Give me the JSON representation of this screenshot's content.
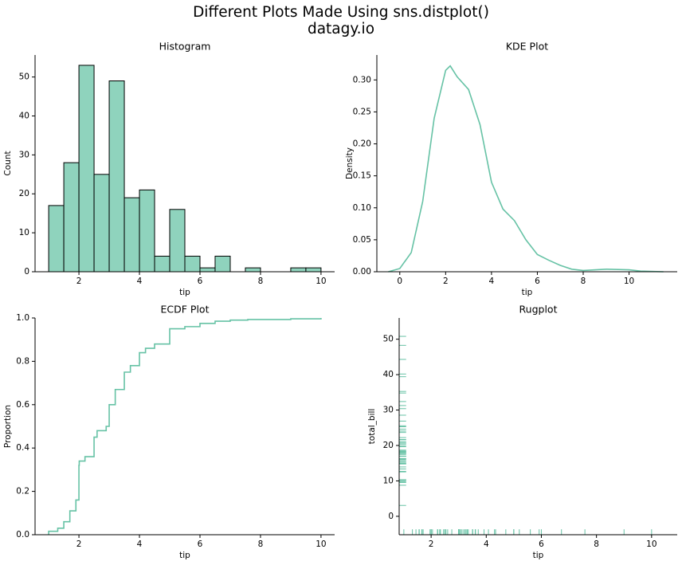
{
  "title": "Different Plots Made Using sns.distplot()",
  "subtitle": "datagy.io",
  "chart_data": [
    {
      "type": "histogram",
      "title": "Histogram",
      "xlabel": "tip",
      "ylabel": "Count",
      "color": "#8fd3bd",
      "edgecolor": "#000000",
      "bins": [
        1.0,
        1.5,
        2.0,
        2.5,
        3.0,
        3.5,
        4.0,
        4.5,
        5.0,
        5.5,
        6.0,
        6.5,
        7.0,
        7.5,
        8.0,
        8.5,
        9.0,
        9.5,
        10.0
      ],
      "values": [
        17,
        28,
        53,
        25,
        49,
        19,
        21,
        4,
        16,
        4,
        1,
        4,
        0,
        1,
        0,
        0,
        1,
        1
      ],
      "xlim": [
        0.55,
        10.45
      ],
      "xticks": [
        2,
        4,
        6,
        8,
        10
      ],
      "ylim": [
        0,
        55.65
      ],
      "yticks": [
        0,
        10,
        20,
        30,
        40,
        50
      ]
    },
    {
      "type": "line",
      "title": "KDE Plot",
      "xlabel": "tip",
      "ylabel": "Density",
      "color": "#66c2a5",
      "x": [
        -0.5,
        0,
        0.5,
        1,
        1.5,
        2,
        2.2,
        2.5,
        3,
        3.5,
        4,
        4.5,
        5,
        5.5,
        6,
        6.5,
        7,
        7.5,
        8,
        9,
        10,
        10.5,
        11.5
      ],
      "values": [
        0,
        0.005,
        0.03,
        0.11,
        0.24,
        0.315,
        0.322,
        0.305,
        0.285,
        0.23,
        0.14,
        0.098,
        0.08,
        0.05,
        0.027,
        0.018,
        0.01,
        0.004,
        0.002,
        0.004,
        0.003,
        0.001,
        0
      ],
      "xlim": [
        -1.0,
        12.1
      ],
      "xticks": [
        0,
        2,
        4,
        6,
        8,
        10
      ],
      "ylim": [
        0,
        0.339
      ],
      "yticks": [
        {
          "value": 0,
          "label": "0.00"
        },
        {
          "value": 0.05,
          "label": "0.05"
        },
        {
          "value": 0.1,
          "label": "0.10"
        },
        {
          "value": 0.15,
          "label": "0.15"
        },
        {
          "value": 0.2,
          "label": "0.20"
        },
        {
          "value": 0.25,
          "label": "0.25"
        },
        {
          "value": 0.3,
          "label": "0.30"
        }
      ]
    },
    {
      "type": "ecdf",
      "title": "ECDF Plot",
      "xlabel": "tip",
      "ylabel": "Proportion",
      "color": "#66c2a5",
      "x": [
        1.0,
        1.3,
        1.5,
        1.7,
        1.9,
        2.0,
        2.01,
        2.2,
        2.5,
        2.6,
        2.9,
        3.0,
        3.2,
        3.5,
        3.7,
        4.0,
        4.2,
        4.5,
        5.0,
        5.5,
        6.0,
        6.5,
        7.0,
        7.58,
        9.0,
        10.0
      ],
      "values": [
        0.016,
        0.03,
        0.06,
        0.11,
        0.16,
        0.32,
        0.34,
        0.36,
        0.45,
        0.48,
        0.5,
        0.6,
        0.67,
        0.75,
        0.78,
        0.84,
        0.86,
        0.88,
        0.95,
        0.96,
        0.975,
        0.985,
        0.99,
        0.993,
        0.996,
        1.0
      ],
      "xlim": [
        0.55,
        10.45
      ],
      "xticks": [
        2,
        4,
        6,
        8,
        10
      ],
      "ylim": [
        0,
        1
      ],
      "yticks": [
        {
          "value": 0,
          "label": "0.0"
        },
        0.2,
        0.4,
        0.6,
        0.8,
        {
          "value": 1,
          "label": "1.0"
        }
      ]
    },
    {
      "type": "rug",
      "title": "Rugplot",
      "xlabel": "tip",
      "ylabel": "total_bill",
      "color": "#66c2a5",
      "x": [
        1.01,
        1.66,
        3.5,
        3.31,
        3.61,
        4.71,
        2,
        3.12,
        1.96,
        3.23,
        1.71,
        5,
        1.57,
        3,
        3.02,
        3.92,
        1.67,
        3.71,
        3.5,
        3.35,
        4.08,
        2.75,
        2.23,
        7.58,
        3.18,
        2.34,
        2,
        2,
        4.3,
        3,
        1.45,
        2.5,
        3,
        2.45,
        3.27,
        3.6,
        2,
        3.07,
        2.31,
        5,
        2.24,
        2.54,
        3.06,
        1.32,
        5.6,
        3,
        5,
        6,
        2.05,
        3,
        2.5,
        2.6,
        5.2,
        1.56,
        4.34,
        3.51,
        6.73,
        9,
        10,
        5.92
      ],
      "y": [
        16.99,
        10.34,
        21.01,
        23.68,
        24.59,
        25.29,
        8.77,
        26.88,
        15.04,
        14.78,
        10.27,
        35.26,
        15.42,
        18.43,
        14.83,
        21.58,
        10.33,
        16.29,
        16.97,
        20.65,
        17.92,
        20.29,
        15.77,
        39.42,
        19.82,
        17.81,
        13.37,
        12.69,
        21.7,
        19.65,
        9.55,
        18.35,
        15.06,
        20.69,
        17.78,
        24.06,
        16.31,
        16.93,
        18.69,
        31.27,
        16.04,
        17.46,
        13.94,
        9.68,
        30.4,
        18.29,
        22.23,
        32.4,
        28.55,
        18.04,
        12.54,
        10.29,
        34.81,
        9.94,
        25.56,
        48.27,
        3.07,
        44.3,
        50.81,
        40.17
      ],
      "xlim": [
        0.84,
        10.93
      ],
      "xticks": [
        2,
        4,
        6,
        8,
        10
      ],
      "ylim": [
        -5.2,
        56
      ],
      "yticks": [
        0,
        10,
        20,
        30,
        40,
        50
      ]
    }
  ]
}
